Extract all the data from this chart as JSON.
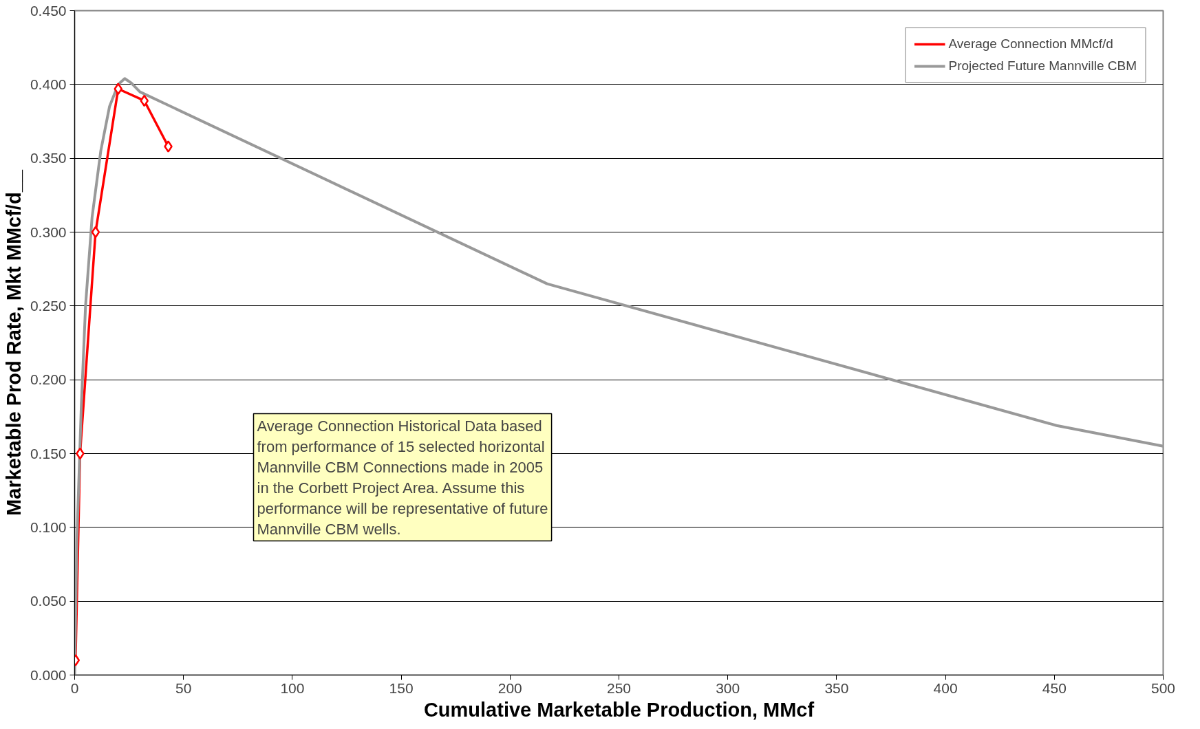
{
  "chart_data": {
    "type": "line",
    "xlabel": "Cumulative Marketable Production, MMcf",
    "ylabel": "Marketable Prod Rate, Mkt MMcf/d__",
    "xlim": [
      0,
      500
    ],
    "xticks": [
      0,
      50,
      100,
      150,
      200,
      250,
      300,
      350,
      400,
      450,
      500
    ],
    "ylim": [
      0,
      0.45
    ],
    "yticks": [
      {
        "value": 0,
        "label": "0.000"
      },
      {
        "value": 0.05,
        "label": "0.050"
      },
      {
        "value": 0.1,
        "label": "0.100"
      },
      {
        "value": 0.15,
        "label": "0.150"
      },
      {
        "value": 0.2,
        "label": "0.200"
      },
      {
        "value": 0.25,
        "label": "0.250"
      },
      {
        "value": 0.3,
        "label": "0.300"
      },
      {
        "value": 0.35,
        "label": "0.350"
      },
      {
        "value": 0.4,
        "label": "0.400"
      },
      {
        "value": 0.45,
        "label": "0.450"
      }
    ],
    "grid": "y",
    "legend": "top right",
    "series": [
      {
        "name": "Average Connection MMcf/d",
        "color": "#ff0000",
        "marker": "diamond",
        "x": [
          0.4,
          2.5,
          9.6,
          20,
          32,
          43
        ],
        "values": [
          0.01,
          0.15,
          0.3,
          0.397,
          0.389,
          0.358
        ]
      },
      {
        "name": "Projected Future Mannville CBM",
        "color": "#999999",
        "marker": "none",
        "x": [
          0,
          1,
          3,
          5,
          8,
          12,
          16,
          20,
          23,
          26,
          30,
          217,
          451,
          500
        ],
        "values": [
          0,
          0.09,
          0.18,
          0.25,
          0.31,
          0.355,
          0.385,
          0.4,
          0.404,
          0.401,
          0.395,
          0.265,
          0.169,
          0.155
        ]
      }
    ],
    "annotations": [
      "Average Connection Historical Data based\nfrom performance of 15 selected horizontal\nMannville CBM Connections made in 2005\nin the Corbett Project Area.  Assume this\nperformance will be representative of future\nMannville CBM wells."
    ]
  }
}
